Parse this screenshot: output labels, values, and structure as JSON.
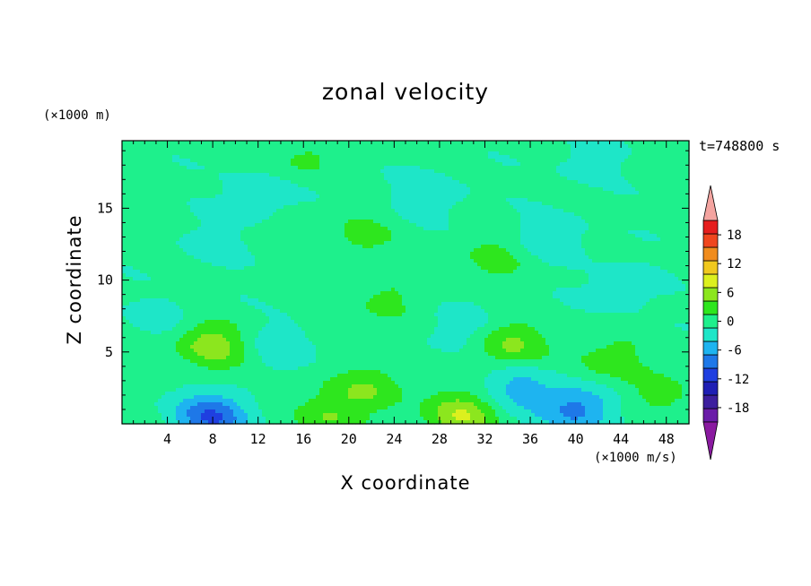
{
  "chart_data": {
    "type": "heatmap",
    "title": "zonal velocity",
    "xlabel": "X coordinate",
    "ylabel": "Z coordinate",
    "x_unit": "(×1000 m/s)",
    "y_unit": "(×1000 m)",
    "time_label": "t=748800 s",
    "xlim": [
      0,
      50
    ],
    "ylim": [
      0,
      19.7
    ],
    "x_ticks": [
      4,
      8,
      12,
      16,
      20,
      24,
      28,
      32,
      36,
      40,
      44,
      48
    ],
    "y_ticks": [
      5,
      10,
      15
    ],
    "colorbar": {
      "levels": [
        -21,
        -18,
        -15,
        -12,
        -9,
        -6,
        -3,
        0,
        3,
        6,
        9,
        12,
        15,
        18,
        21
      ],
      "tick_labels": [
        18,
        12,
        6,
        0,
        -6,
        -12,
        -18
      ],
      "colors": [
        "#6a1ca8",
        "#3d1f9e",
        "#1f1fb4",
        "#1f3fe0",
        "#1e78e8",
        "#1eb4f0",
        "#1ee6c8",
        "#1ef08c",
        "#2ee61e",
        "#8ce61e",
        "#dcf01e",
        "#f0c81e",
        "#f08c1e",
        "#f0461e",
        "#e61e1e"
      ],
      "under_color": "#8a1aa0",
      "over_color": "#f4a4a0"
    },
    "features": [
      {
        "x": 8,
        "z": 5.5,
        "u": 7
      },
      {
        "x": 34,
        "z": 5.5,
        "u": 6
      },
      {
        "x": 43,
        "z": 4.5,
        "u": 4
      },
      {
        "x": 22,
        "z": 2.5,
        "u": 5
      },
      {
        "x": 30,
        "z": 0.6,
        "u": 8
      },
      {
        "x": 18,
        "z": 0.6,
        "u": 5
      },
      {
        "x": 8,
        "z": 0.5,
        "u": -10
      },
      {
        "x": 40,
        "z": 1.0,
        "u": -8
      },
      {
        "x": 35,
        "z": 2.5,
        "u": -5
      },
      {
        "x": 14,
        "z": 5.5,
        "u": -3
      },
      {
        "x": 4,
        "z": 7.5,
        "u": -2
      },
      {
        "x": 47,
        "z": 2.0,
        "u": 3
      },
      {
        "x": 16,
        "z": 18.5,
        "u": 3
      },
      {
        "x": 41,
        "z": 18.3,
        "u": -2
      },
      {
        "x": 12,
        "z": 16.0,
        "u": -3
      },
      {
        "x": 21,
        "z": 13.0,
        "u": 3
      },
      {
        "x": 33,
        "z": 11.5,
        "u": 3
      },
      {
        "x": 23,
        "z": 8.5,
        "u": 3
      },
      {
        "x": 38,
        "z": 13.0,
        "u": -3
      },
      {
        "x": 44,
        "z": 9.5,
        "u": -3
      },
      {
        "x": 27,
        "z": 16.0,
        "u": -3
      },
      {
        "x": 8,
        "z": 12.5,
        "u": -2
      },
      {
        "x": 30,
        "z": 6.5,
        "u": -3
      }
    ]
  }
}
